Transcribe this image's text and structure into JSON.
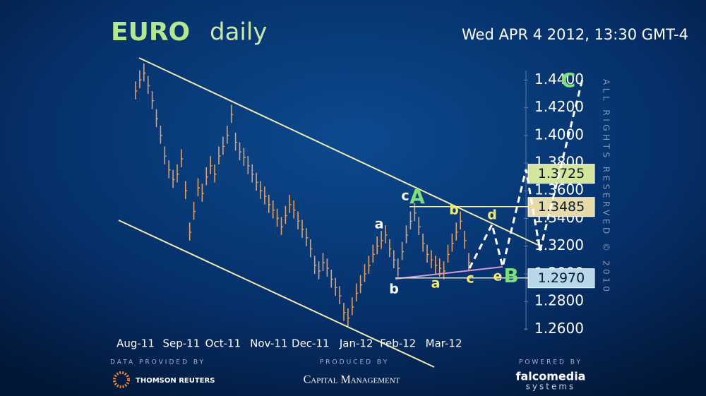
{
  "chart_data": {
    "type": "ohlc",
    "title": "EURO",
    "title_period": "daily",
    "timestamp": "Wed APR 4 2012, 13:30 GMT-4",
    "copyright": "ALL RIGHTS RESERVED © 2010",
    "color": "#e0a068",
    "categories": [
      "Aug-11",
      null,
      null,
      null,
      null,
      null,
      null,
      null,
      null,
      null,
      null,
      "Sep-11",
      null,
      null,
      null,
      null,
      null,
      null,
      null,
      null,
      null,
      "Oct-11",
      null,
      null,
      null,
      null,
      null,
      null,
      null,
      null,
      null,
      null,
      "Nov-11",
      null,
      null,
      null,
      null,
      null,
      null,
      null,
      null,
      null,
      "Dec-11",
      null,
      null,
      null,
      null,
      null,
      null,
      null,
      null,
      null,
      null,
      "Jan-12",
      null,
      null,
      null,
      null,
      null,
      null,
      null,
      null,
      null,
      "Feb-12",
      null,
      null,
      null,
      null,
      null,
      null,
      null,
      null,
      null,
      null,
      "Mar-12",
      null,
      null,
      null,
      null,
      null,
      null
    ],
    "high": [
      1.439,
      1.447,
      1.452,
      1.443,
      1.432,
      1.419,
      1.407,
      1.392,
      1.382,
      1.375,
      1.379,
      1.39,
      1.367,
      1.337,
      1.352,
      1.369,
      1.365,
      1.377,
      1.385,
      1.379,
      1.392,
      1.399,
      1.407,
      1.422,
      1.402,
      1.395,
      1.391,
      1.385,
      1.379,
      1.373,
      1.367,
      1.363,
      1.357,
      1.353,
      1.347,
      1.341,
      1.349,
      1.357,
      1.353,
      1.345,
      1.339,
      1.333,
      1.325,
      1.313,
      1.309,
      1.315,
      1.311,
      1.303,
      1.297,
      1.291,
      1.279,
      1.275,
      1.283,
      1.293,
      1.299,
      1.307,
      1.313,
      1.321,
      1.327,
      1.331,
      1.335,
      1.325,
      1.317,
      1.311,
      1.323,
      1.335,
      1.345,
      1.351,
      1.341,
      1.329,
      1.321,
      1.317,
      1.313,
      1.311,
      1.309,
      1.321,
      1.329,
      1.337,
      1.345,
      1.331,
      1.315
    ],
    "low": [
      1.426,
      1.434,
      1.439,
      1.43,
      1.419,
      1.406,
      1.394,
      1.379,
      1.369,
      1.362,
      1.366,
      1.377,
      1.354,
      1.324,
      1.339,
      1.356,
      1.352,
      1.364,
      1.372,
      1.366,
      1.379,
      1.386,
      1.394,
      1.409,
      1.389,
      1.382,
      1.378,
      1.372,
      1.366,
      1.36,
      1.354,
      1.35,
      1.344,
      1.34,
      1.334,
      1.328,
      1.336,
      1.344,
      1.34,
      1.332,
      1.326,
      1.32,
      1.312,
      1.3,
      1.296,
      1.302,
      1.298,
      1.29,
      1.284,
      1.278,
      1.266,
      1.262,
      1.27,
      1.28,
      1.286,
      1.294,
      1.3,
      1.308,
      1.314,
      1.318,
      1.322,
      1.312,
      1.304,
      1.298,
      1.31,
      1.322,
      1.332,
      1.338,
      1.328,
      1.316,
      1.308,
      1.304,
      1.3,
      1.298,
      1.296,
      1.308,
      1.316,
      1.324,
      1.332,
      1.318,
      1.302
    ],
    "close": [
      1.432,
      1.44,
      1.445,
      1.436,
      1.425,
      1.412,
      1.4,
      1.385,
      1.375,
      1.368,
      1.372,
      1.383,
      1.36,
      1.33,
      1.345,
      1.362,
      1.358,
      1.37,
      1.378,
      1.372,
      1.385,
      1.392,
      1.4,
      1.415,
      1.395,
      1.388,
      1.384,
      1.378,
      1.372,
      1.366,
      1.36,
      1.356,
      1.35,
      1.346,
      1.34,
      1.334,
      1.342,
      1.35,
      1.346,
      1.338,
      1.332,
      1.326,
      1.318,
      1.306,
      1.302,
      1.308,
      1.304,
      1.296,
      1.29,
      1.284,
      1.272,
      1.268,
      1.276,
      1.286,
      1.292,
      1.3,
      1.306,
      1.314,
      1.32,
      1.324,
      1.328,
      1.318,
      1.31,
      1.304,
      1.316,
      1.328,
      1.338,
      1.344,
      1.334,
      1.322,
      1.314,
      1.31,
      1.306,
      1.304,
      1.302,
      1.314,
      1.322,
      1.33,
      1.338,
      1.324,
      1.308
    ],
    "ylim": [
      1.253,
      1.457
    ],
    "yticks": [
      {
        "value": 1.26,
        "label": "1.2600"
      },
      {
        "value": 1.28,
        "label": "1.2800"
      },
      {
        "value": 1.3,
        "label": "1.3000"
      },
      {
        "value": 1.32,
        "label": "1.3200"
      },
      {
        "value": 1.34,
        "label": "1.3400"
      },
      {
        "value": 1.36,
        "label": "1.3600"
      },
      {
        "value": 1.38,
        "label": "1.3800"
      },
      {
        "value": 1.4,
        "label": "1.4000"
      },
      {
        "value": 1.42,
        "label": "1.4200"
      },
      {
        "value": 1.44,
        "label": "1.4400"
      }
    ],
    "levels": [
      {
        "value": 1.3725,
        "color": "#d2e69c"
      },
      {
        "value": 1.3485,
        "color": "#e6dba6"
      },
      {
        "value": 1.297,
        "label": "1.2970",
        "color": "#b6d6ea"
      }
    ],
    "annotations": [
      {
        "text": "c",
        "color": "#ffffff"
      },
      {
        "text": "A",
        "color": "#7ee07a"
      },
      {
        "text": "a",
        "color": "#ffffff"
      },
      {
        "text": "b",
        "color": "#f2ea70"
      },
      {
        "text": "d",
        "color": "#f2ea70"
      },
      {
        "text": "b",
        "color": "#ffffff"
      },
      {
        "text": "a",
        "color": "#f2ea70"
      },
      {
        "text": "c",
        "color": "#f2ea70"
      },
      {
        "text": "e",
        "color": "#f2ea70"
      },
      {
        "text": "B",
        "color": "#7ee07a"
      },
      {
        "text": "C",
        "color": "#7ee07a"
      }
    ]
  },
  "footer": {
    "data_label": "DATA PROVIDED BY",
    "data_source": "THOMSON REUTERS",
    "produced_label": "PRODUCED BY",
    "producer": "Capital Management",
    "powered_label": "POWERED BY",
    "powered_name": "falcomedia",
    "powered_sub": "systems"
  }
}
